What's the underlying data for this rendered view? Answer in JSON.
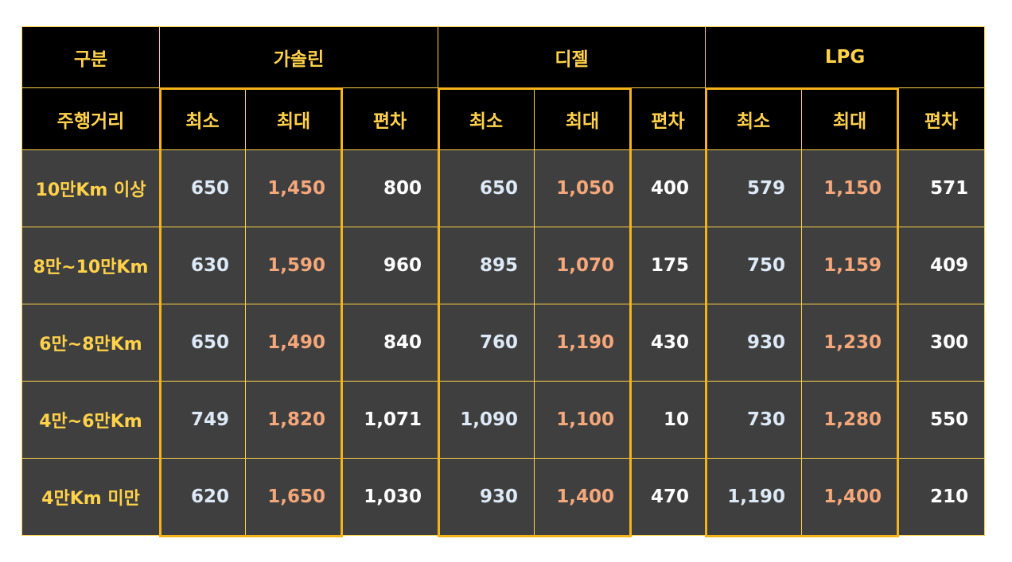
{
  "colors": {
    "header_bg": "#000000",
    "body_bg": "#3f3f3f",
    "header_text": "#ffd24a",
    "grid_line": "#ffd24a",
    "highlight_box": "#f5b31a",
    "min_value": "#dde9f6",
    "max_value": "#f4a77a",
    "deviation_value": "#ffffff"
  },
  "header": {
    "category": "구분",
    "fuels": [
      "가솔린",
      "디젤",
      "LPG"
    ],
    "distance": "주행거리",
    "min": "최소",
    "max": "최대",
    "deviation": "편차"
  },
  "rows": [
    {
      "label": "10만Km 이상",
      "gasoline": [
        "650",
        "1,450",
        "800"
      ],
      "diesel": [
        "650",
        "1,050",
        "400"
      ],
      "lpg": [
        "579",
        "1,150",
        "571"
      ]
    },
    {
      "label": "8만~10만Km",
      "gasoline": [
        "630",
        "1,590",
        "960"
      ],
      "diesel": [
        "895",
        "1,070",
        "175"
      ],
      "lpg": [
        "750",
        "1,159",
        "409"
      ]
    },
    {
      "label": "6만~8만Km",
      "gasoline": [
        "650",
        "1,490",
        "840"
      ],
      "diesel": [
        "760",
        "1,190",
        "430"
      ],
      "lpg": [
        "930",
        "1,230",
        "300"
      ]
    },
    {
      "label": "4만~6만Km",
      "gasoline": [
        "749",
        "1,820",
        "1,071"
      ],
      "diesel": [
        "1,090",
        "1,100",
        "10"
      ],
      "lpg": [
        "730",
        "1,280",
        "550"
      ]
    },
    {
      "label": "4만Km 미만",
      "gasoline": [
        "620",
        "1,650",
        "1,030"
      ],
      "diesel": [
        "930",
        "1,400",
        "470"
      ],
      "lpg": [
        "1,190",
        "1,400",
        "210"
      ]
    }
  ]
}
